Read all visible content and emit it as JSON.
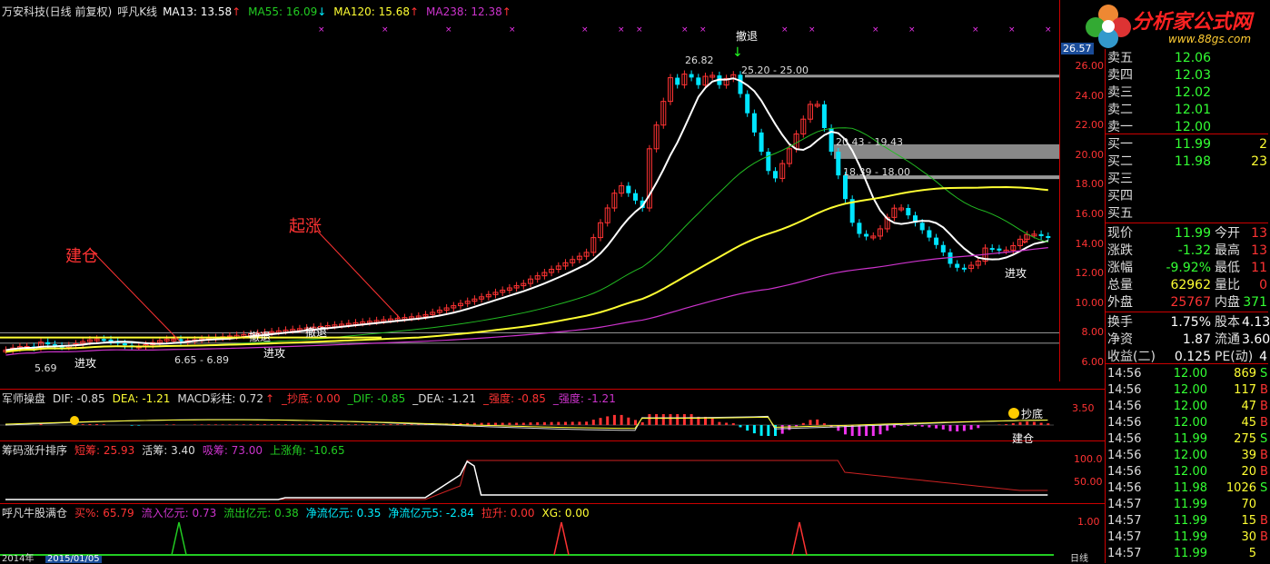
{
  "title_bar": {
    "name": "万安科技(日线 前复权)",
    "indicator": "呼凡K线",
    "ma13": "MA13: 13.58",
    "ma55": "MA55: 16.09",
    "ma120": "MA120: 15.68",
    "ma238": "MA238: 12.38"
  },
  "logo": {
    "name": "分析家公式网",
    "url": "www.88gs.com"
  },
  "price_axis": [
    "26.00",
    "24.00",
    "22.00",
    "20.00",
    "18.00",
    "16.00",
    "14.00",
    "12.00",
    "10.00",
    "8.00",
    "6.00"
  ],
  "price_axis_top": "26.57",
  "annotations": {
    "jiancang": "建仓",
    "qizhang": "起涨",
    "high": "26.82",
    "zone1": "25.20 - 25.00",
    "zone2": "20.43 - 19.43",
    "zone3": "18.39 - 18.00",
    "low_zone": "6.65 - 6.89",
    "low": "5.69",
    "chetui1": "撤退",
    "chetui2": "撤退",
    "chetui3": "撤退",
    "jingong1": "进攻",
    "jingong2": "进攻",
    "jingong3": "进攻"
  },
  "macd_panel": {
    "name": "军师操盘",
    "dif": "DIF: -0.85",
    "dea": "DEA: -1.21",
    "macd": "MACD彩柱: 0.72",
    "chaodi": "_抄底: 0.00",
    "dif2": "_DIF: -0.85",
    "dea2": "_DEA: -1.21",
    "qiangdu1": "_强度: -0.85",
    "qiangdu2": "_强度: -1.21",
    "axis": "3.50",
    "lbl_chaodi": "抄底",
    "lbl_jiancang": "建仓"
  },
  "chip_panel": {
    "name": "筹码涨升排序",
    "duanchou": "短筹: 25.93",
    "huochou": "活筹: 3.40",
    "xichou": "吸筹: 73.00",
    "shangzhangjiao": "上涨角: -10.65",
    "axis": [
      "100.0",
      "50.00"
    ]
  },
  "bull_panel": {
    "name": "呼凡牛股满仓",
    "maibi": "买%: 65.79",
    "liuru": "流入亿元: 0.73",
    "liuchu": "流出亿元: 0.38",
    "jingliu": "净流亿元: 0.35",
    "jingliu5": "净流亿元5: -2.84",
    "lasheng": "拉升: 0.00",
    "xg": "XG: 0.00",
    "axis": "1.00"
  },
  "date_axis": {
    "year": "2014年",
    "date": "2015/01/05",
    "period": "日线"
  },
  "quote": {
    "sell": [
      {
        "label": "卖五",
        "price": "12.06",
        "vol": ""
      },
      {
        "label": "卖四",
        "price": "12.03",
        "vol": ""
      },
      {
        "label": "卖三",
        "price": "12.02",
        "vol": ""
      },
      {
        "label": "卖二",
        "price": "12.01",
        "vol": ""
      },
      {
        "label": "卖一",
        "price": "12.00",
        "vol": ""
      }
    ],
    "buy": [
      {
        "label": "买一",
        "price": "11.99",
        "vol": "2"
      },
      {
        "label": "买二",
        "price": "11.98",
        "vol": "23"
      },
      {
        "label": "买三",
        "price": "",
        "vol": ""
      },
      {
        "label": "买四",
        "price": "",
        "vol": ""
      },
      {
        "label": "买五",
        "price": "",
        "vol": ""
      }
    ],
    "stats": [
      {
        "k1": "现价",
        "v1": "11.99",
        "k2": "今开",
        "v2": "13"
      },
      {
        "k1": "涨跌",
        "v1": "-1.32",
        "k2": "最高",
        "v2": "13"
      },
      {
        "k1": "涨幅",
        "v1": "-9.92%",
        "k2": "最低",
        "v2": "11"
      },
      {
        "k1": "总量",
        "v1": "62962",
        "k2": "量比",
        "v2": "0"
      },
      {
        "k1": "外盘",
        "v1": "25767",
        "k2": "内盘",
        "v2": "371"
      }
    ],
    "stats2": [
      {
        "k1": "换手",
        "v1": "1.75%",
        "k2": "股本",
        "v2": "4.13"
      },
      {
        "k1": "净资",
        "v1": "1.87",
        "k2": "流通",
        "v2": "3.60"
      },
      {
        "k1": "收益(二)",
        "v1": "0.125",
        "k2": "PE(动)",
        "v2": "4"
      }
    ],
    "ticks": [
      {
        "t": "14:56",
        "p": "12.00",
        "v": "869",
        "f": "S"
      },
      {
        "t": "14:56",
        "p": "12.00",
        "v": "117",
        "f": "B"
      },
      {
        "t": "14:56",
        "p": "12.00",
        "v": "47",
        "f": "B"
      },
      {
        "t": "14:56",
        "p": "12.00",
        "v": "45",
        "f": "B"
      },
      {
        "t": "14:56",
        "p": "11.99",
        "v": "275",
        "f": "S"
      },
      {
        "t": "14:56",
        "p": "12.00",
        "v": "39",
        "f": "B"
      },
      {
        "t": "14:56",
        "p": "12.00",
        "v": "20",
        "f": "B"
      },
      {
        "t": "14:56",
        "p": "11.98",
        "v": "1026",
        "f": "S"
      },
      {
        "t": "14:57",
        "p": "11.99",
        "v": "70",
        "f": ""
      },
      {
        "t": "14:57",
        "p": "11.99",
        "v": "15",
        "f": "B"
      },
      {
        "t": "14:57",
        "p": "11.99",
        "v": "30",
        "f": "B"
      },
      {
        "t": "14:57",
        "p": "11.99",
        "v": "5",
        "f": ""
      }
    ]
  },
  "colors": {
    "up": "#ff3333",
    "down": "#00e5ff",
    "ma13": "#ffffff",
    "ma55": "#22bb22",
    "ma120": "#ffff33",
    "ma238": "#cc33cc"
  }
}
